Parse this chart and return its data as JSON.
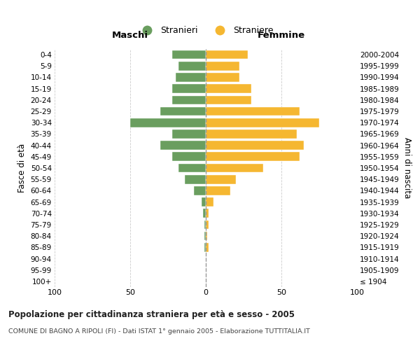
{
  "age_groups": [
    "100+",
    "95-99",
    "90-94",
    "85-89",
    "80-84",
    "75-79",
    "70-74",
    "65-69",
    "60-64",
    "55-59",
    "50-54",
    "45-49",
    "40-44",
    "35-39",
    "30-34",
    "25-29",
    "20-24",
    "15-19",
    "10-14",
    "5-9",
    "0-4"
  ],
  "birth_years": [
    "≤ 1904",
    "1905-1909",
    "1910-1914",
    "1915-1919",
    "1920-1924",
    "1925-1929",
    "1930-1934",
    "1935-1939",
    "1940-1944",
    "1945-1949",
    "1950-1954",
    "1955-1959",
    "1960-1964",
    "1965-1969",
    "1970-1974",
    "1975-1979",
    "1980-1984",
    "1985-1989",
    "1990-1994",
    "1995-1999",
    "2000-2004"
  ],
  "maschi": [
    0,
    0,
    0,
    1,
    1,
    1,
    2,
    3,
    8,
    14,
    18,
    22,
    30,
    22,
    50,
    30,
    22,
    22,
    20,
    18,
    22
  ],
  "femmine": [
    0,
    0,
    0,
    2,
    1,
    2,
    2,
    5,
    16,
    20,
    38,
    62,
    65,
    60,
    75,
    62,
    30,
    30,
    22,
    22,
    28
  ],
  "color_maschi": "#6a9e5f",
  "color_femmine": "#f5b731",
  "title": "Popolazione per cittadinanza straniera per età e sesso - 2005",
  "subtitle": "COMUNE DI BAGNO A RIPOLI (FI) - Dati ISTAT 1° gennaio 2005 - Elaborazione TUTTITALIA.IT",
  "xlabel_left": "Maschi",
  "xlabel_right": "Femmine",
  "ylabel_left": "Fasce di età",
  "ylabel_right": "Anni di nascita",
  "legend_maschi": "Stranieri",
  "legend_femmine": "Straniere",
  "xlim": 100,
  "background_color": "#ffffff",
  "grid_color": "#cccccc",
  "dashed_line_color": "#999999"
}
